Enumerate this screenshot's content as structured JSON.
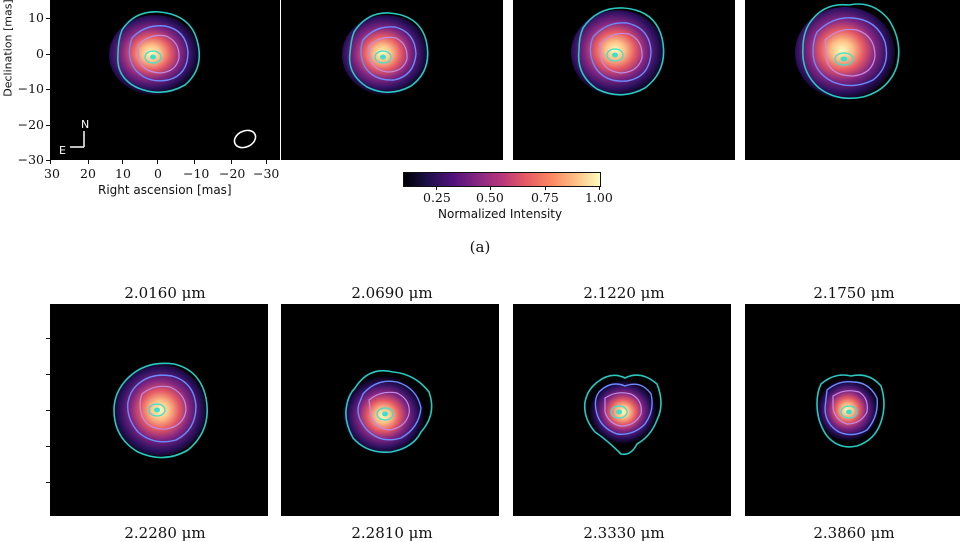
{
  "axes": {
    "ylabel": "Declination [mas]",
    "xlabel": "Right ascension [mas]",
    "yticks": [
      "10",
      "0",
      "−10",
      "−20",
      "−30"
    ],
    "xticks": [
      "30",
      "20",
      "10",
      "0",
      "−10",
      "−20",
      "−30"
    ],
    "compass_n": "N",
    "compass_e": "E"
  },
  "colorbar": {
    "label": "Normalized Intensity",
    "ticks": [
      "0.25",
      "0.50",
      "0.75",
      "1.00"
    ],
    "colormap": "magma"
  },
  "caption": "(a)",
  "panel_titles": [
    "2.0160 μm",
    "2.0690 μm",
    "2.1220 μm",
    "2.1750 μm"
  ],
  "panel_subtitles": [
    "2.2280 μm",
    "2.2810 μm",
    "2.3330 μm",
    "2.3860 μm"
  ],
  "colors": {
    "contour_outer": "#27c9c0",
    "contour_mid": "#6a8cff",
    "contour_inner": "#c08ce8",
    "peak": "#38e0d0"
  }
}
